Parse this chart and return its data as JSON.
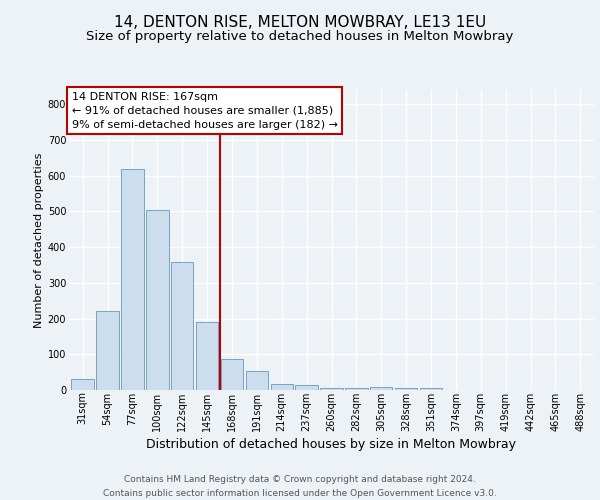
{
  "title1": "14, DENTON RISE, MELTON MOWBRAY, LE13 1EU",
  "title2": "Size of property relative to detached houses in Melton Mowbray",
  "xlabel": "Distribution of detached houses by size in Melton Mowbray",
  "ylabel": "Number of detached properties",
  "categories": [
    "31sqm",
    "54sqm",
    "77sqm",
    "100sqm",
    "122sqm",
    "145sqm",
    "168sqm",
    "191sqm",
    "214sqm",
    "237sqm",
    "260sqm",
    "282sqm",
    "305sqm",
    "328sqm",
    "351sqm",
    "374sqm",
    "397sqm",
    "419sqm",
    "442sqm",
    "465sqm",
    "488sqm"
  ],
  "values": [
    30,
    220,
    620,
    503,
    358,
    190,
    88,
    52,
    18,
    14,
    7,
    5,
    8,
    5,
    7,
    0,
    0,
    0,
    0,
    0,
    0
  ],
  "bar_color": "#ccdded",
  "bar_edge_color": "#6699bb",
  "vline_color": "#bb0000",
  "annotation_line1": "14 DENTON RISE: 167sqm",
  "annotation_line2": "← 91% of detached houses are smaller (1,885)",
  "annotation_line3": "9% of semi-detached houses are larger (182) →",
  "annotation_box_fc": "#ffffff",
  "annotation_box_ec": "#bb0000",
  "ylim": [
    0,
    840
  ],
  "yticks": [
    0,
    100,
    200,
    300,
    400,
    500,
    600,
    700,
    800
  ],
  "footer1": "Contains HM Land Registry data © Crown copyright and database right 2024.",
  "footer2": "Contains public sector information licensed under the Open Government Licence v3.0.",
  "bg_color": "#edf2f7",
  "grid_color": "#ffffff",
  "title1_fontsize": 11,
  "title2_fontsize": 9.5,
  "xlabel_fontsize": 9,
  "ylabel_fontsize": 8,
  "tick_fontsize": 7,
  "ann_fontsize": 8,
  "footer_fontsize": 6.5
}
